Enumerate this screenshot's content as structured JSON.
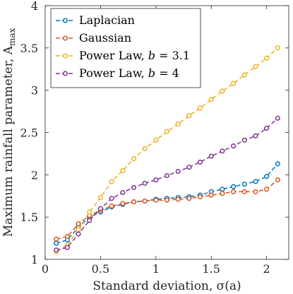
{
  "chart_data": {
    "type": "line",
    "xlabel": "Standard deviation, σ(a)",
    "ylabel": "Maximum rainfall parameter, A",
    "ylabel_sub": "max",
    "xlim": [
      0,
      2.2
    ],
    "ylim": [
      1,
      4
    ],
    "xticks": [
      0,
      0.5,
      1,
      1.5,
      2
    ],
    "xtick_labels": [
      "0",
      "0.5",
      "1",
      "1.5",
      "2"
    ],
    "yticks": [
      1,
      1.5,
      2,
      2.5,
      3,
      3.5,
      4
    ],
    "ytick_labels": [
      "1",
      "1.5",
      "2",
      "2.5",
      "3",
      "3.5",
      "4"
    ],
    "grid": false,
    "legend_position": "top-left",
    "x": [
      0.1,
      0.2,
      0.3,
      0.4,
      0.5,
      0.6,
      0.7,
      0.8,
      0.9,
      1.0,
      1.1,
      1.2,
      1.3,
      1.4,
      1.5,
      1.6,
      1.7,
      1.8,
      1.9,
      2.0,
      2.1
    ],
    "series": [
      {
        "name": "Laplacian",
        "color": "#0072BD",
        "values": [
          1.19,
          1.23,
          1.38,
          1.5,
          1.56,
          1.62,
          1.65,
          1.68,
          1.69,
          1.71,
          1.72,
          1.73,
          1.74,
          1.76,
          1.8,
          1.83,
          1.86,
          1.89,
          1.92,
          1.98,
          2.13
        ]
      },
      {
        "name": "Gaussian",
        "color": "#D95319",
        "values": [
          1.24,
          1.27,
          1.42,
          1.52,
          1.58,
          1.63,
          1.66,
          1.68,
          1.69,
          1.7,
          1.7,
          1.71,
          1.72,
          1.74,
          1.76,
          1.78,
          1.8,
          1.8,
          1.8,
          1.83,
          1.94
        ]
      },
      {
        "name": "Power Law, b = 3.1",
        "color": "#EDB120",
        "values": [
          1.09,
          1.17,
          1.35,
          1.56,
          1.73,
          1.92,
          2.05,
          2.19,
          2.31,
          2.41,
          2.51,
          2.6,
          2.7,
          2.79,
          2.89,
          2.99,
          3.08,
          3.18,
          3.28,
          3.38,
          3.5
        ]
      },
      {
        "name": "Power Law, b = 4",
        "color": "#7E2F8E",
        "values": [
          1.11,
          1.14,
          1.3,
          1.46,
          1.6,
          1.72,
          1.79,
          1.85,
          1.9,
          1.94,
          1.99,
          2.04,
          2.09,
          2.15,
          2.22,
          2.28,
          2.34,
          2.41,
          2.46,
          2.55,
          2.67
        ]
      }
    ],
    "legend": [
      {
        "base": "Laplacian",
        "italic": "",
        "tail": ""
      },
      {
        "base": "Gaussian",
        "italic": "",
        "tail": ""
      },
      {
        "base": "Power Law, ",
        "italic": "b",
        "tail": " = 3.1"
      },
      {
        "base": "Power Law, ",
        "italic": "b",
        "tail": " = 4"
      }
    ]
  }
}
